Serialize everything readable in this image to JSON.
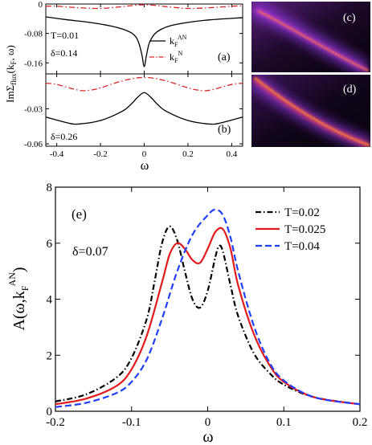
{
  "chart_data": [
    {
      "id": "panel-a",
      "type": "line",
      "panel_label": "(a)",
      "ylabel": "ImΣ",
      "ylabel_sub": "flux",
      "ylabel_args": "(k",
      "ylabel_args_sub": "F",
      "ylabel_args_tail": ", ω)",
      "xlim": [
        -0.45,
        0.45
      ],
      "ylim": [
        -0.19,
        0
      ],
      "yticks": [
        0,
        -0.08,
        -0.16
      ],
      "ytick_labels": [
        "0",
        "-0.08",
        "-0.16"
      ],
      "annotations": [
        "T=0.01",
        "δ=0.14"
      ],
      "legend": [
        {
          "name": "k",
          "sub": "F",
          "sup": "AN",
          "color": "#000000",
          "dash": "solid"
        },
        {
          "name": "k",
          "sub": "F",
          "sup": "N",
          "color": "#d62728",
          "dash": "dashdot"
        }
      ],
      "series": [
        {
          "name": "AN",
          "color": "#000000",
          "dash": "solid",
          "x": [
            -0.45,
            -0.35,
            -0.25,
            -0.15,
            -0.1,
            -0.06,
            -0.04,
            -0.03,
            -0.02,
            -0.01,
            0.0,
            0.01,
            0.02,
            0.03,
            0.05,
            0.08,
            0.12,
            0.2,
            0.3,
            0.45
          ],
          "y": [
            -0.035,
            -0.043,
            -0.05,
            -0.06,
            -0.068,
            -0.078,
            -0.088,
            -0.098,
            -0.115,
            -0.14,
            -0.17,
            -0.14,
            -0.112,
            -0.097,
            -0.08,
            -0.068,
            -0.059,
            -0.05,
            -0.043,
            -0.037
          ]
        },
        {
          "name": "N",
          "color": "#d62728",
          "dash": "dashdot",
          "x": [
            -0.45,
            -0.4,
            -0.3,
            -0.2,
            -0.1,
            0.0,
            0.1,
            0.2,
            0.3,
            0.4,
            0.45
          ],
          "y": [
            -0.006,
            -0.006,
            -0.01,
            -0.012,
            -0.007,
            -0.002,
            -0.007,
            -0.012,
            -0.01,
            -0.006,
            -0.005
          ]
        }
      ]
    },
    {
      "id": "panel-b",
      "type": "line",
      "panel_label": "(b)",
      "xlabel": "ω",
      "xlim": [
        -0.45,
        0.45
      ],
      "ylim": [
        -0.062,
        0
      ],
      "xticks": [
        -0.4,
        -0.2,
        0,
        0.2,
        0.4
      ],
      "xtick_labels": [
        "-0.4",
        "-0.2",
        "0",
        "0.2",
        "0.4"
      ],
      "yticks": [
        -0.03,
        -0.06
      ],
      "ytick_labels": [
        "-0.03",
        "-0.06"
      ],
      "annotations": [
        "δ=0.26"
      ],
      "series": [
        {
          "name": "AN",
          "color": "#000000",
          "dash": "solid",
          "x": [
            -0.45,
            -0.35,
            -0.3,
            -0.2,
            -0.1,
            -0.06,
            -0.03,
            0.0,
            0.03,
            0.06,
            0.1,
            0.2,
            0.3,
            0.35,
            0.45
          ],
          "y": [
            -0.037,
            -0.042,
            -0.043,
            -0.04,
            -0.032,
            -0.026,
            -0.02,
            -0.016,
            -0.02,
            -0.026,
            -0.032,
            -0.04,
            -0.043,
            -0.042,
            -0.037
          ]
        },
        {
          "name": "N",
          "color": "#d62728",
          "dash": "dashdot",
          "x": [
            -0.45,
            -0.4,
            -0.3,
            -0.25,
            -0.2,
            -0.1,
            0.0,
            0.1,
            0.2,
            0.25,
            0.3,
            0.4,
            0.45
          ],
          "y": [
            -0.008,
            -0.009,
            -0.014,
            -0.014,
            -0.012,
            -0.006,
            -0.003,
            -0.006,
            -0.012,
            -0.014,
            -0.014,
            -0.009,
            -0.008
          ]
        }
      ]
    },
    {
      "id": "panel-c",
      "type": "heatmap",
      "panel_label": "(c)"
    },
    {
      "id": "panel-d",
      "type": "heatmap",
      "panel_label": "(d)"
    },
    {
      "id": "panel-e",
      "type": "line",
      "panel_label": "(e)",
      "xlabel": "ω",
      "ylabel": "A(ω,k",
      "ylabel_sub": "F",
      "ylabel_sup": "AN",
      "ylabel_tail": ")",
      "xlim": [
        -0.2,
        0.2
      ],
      "ylim": [
        0,
        8
      ],
      "xticks": [
        -0.2,
        -0.1,
        0,
        0.1,
        0.2
      ],
      "xtick_labels": [
        "-0.2",
        "-0.1",
        "0",
        "0.1",
        "0.2"
      ],
      "yticks": [
        0,
        2,
        4,
        6,
        8
      ],
      "ytick_labels": [
        "0",
        "2",
        "4",
        "6",
        "8"
      ],
      "annotations": [
        "δ=0.07"
      ],
      "legend_position": "top-right",
      "series": [
        {
          "name": "T=0.02",
          "color": "#000000",
          "dash": "dashdot",
          "x": [
            -0.2,
            -0.16,
            -0.12,
            -0.1,
            -0.08,
            -0.07,
            -0.06,
            -0.05,
            -0.04,
            -0.03,
            -0.02,
            -0.01,
            0.0,
            0.01,
            0.015,
            0.02,
            0.03,
            0.04,
            0.06,
            0.08,
            0.1,
            0.14,
            0.2
          ],
          "y": [
            0.35,
            0.6,
            1.2,
            1.9,
            3.3,
            4.6,
            6.0,
            6.6,
            6.1,
            5.0,
            4.0,
            3.7,
            4.3,
            5.5,
            5.9,
            5.7,
            4.5,
            3.4,
            2.1,
            1.4,
            0.95,
            0.5,
            0.25
          ]
        },
        {
          "name": "T=0.025",
          "color": "#e31a1c",
          "dash": "solid",
          "x": [
            -0.2,
            -0.16,
            -0.12,
            -0.1,
            -0.08,
            -0.06,
            -0.05,
            -0.04,
            -0.03,
            -0.02,
            -0.01,
            0.0,
            0.01,
            0.02,
            0.03,
            0.04,
            0.06,
            0.08,
            0.1,
            0.14,
            0.2
          ],
          "y": [
            0.25,
            0.45,
            0.9,
            1.5,
            2.7,
            4.6,
            5.6,
            6.0,
            5.8,
            5.4,
            5.3,
            5.8,
            6.4,
            6.5,
            5.8,
            4.5,
            2.8,
            1.7,
            1.05,
            0.5,
            0.25
          ]
        },
        {
          "name": "T=0.04",
          "color": "#1f3fff",
          "dash": "dashed",
          "x": [
            -0.2,
            -0.16,
            -0.12,
            -0.1,
            -0.08,
            -0.06,
            -0.04,
            -0.02,
            0.0,
            0.01,
            0.02,
            0.03,
            0.04,
            0.06,
            0.08,
            0.1,
            0.14,
            0.2
          ],
          "y": [
            0.15,
            0.3,
            0.65,
            1.05,
            1.85,
            3.3,
            5.0,
            6.3,
            7.0,
            7.2,
            7.0,
            6.2,
            5.0,
            3.1,
            1.8,
            1.1,
            0.5,
            0.25
          ]
        }
      ]
    }
  ]
}
